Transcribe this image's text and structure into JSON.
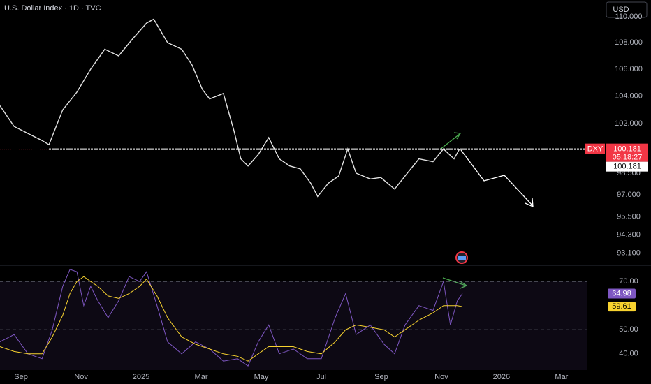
{
  "header": {
    "title": "U.S. Dollar Index · 1D · TVC",
    "currency": "USD"
  },
  "chart_data": [
    {
      "type": "line",
      "name": "DXY",
      "log": true,
      "color": "#e3e3e3",
      "xlim": [
        -0.7,
        18.84
      ],
      "xticks": [
        {
          "value": 0,
          "label": "Sep"
        },
        {
          "value": 2,
          "label": "Nov"
        },
        {
          "value": 4,
          "label": "2025"
        },
        {
          "value": 6,
          "label": "Mar"
        },
        {
          "value": 8,
          "label": "May"
        },
        {
          "value": 10,
          "label": "Jul"
        },
        {
          "value": 12,
          "label": "Sep"
        },
        {
          "value": 14,
          "label": "Nov"
        },
        {
          "value": 16,
          "label": "2026"
        },
        {
          "value": 18,
          "label": "Mar"
        }
      ],
      "ylim": [
        92.3,
        111.3
      ],
      "yticks": [
        {
          "value": 110,
          "label": "110.000"
        },
        {
          "value": 108,
          "label": "108.000"
        },
        {
          "value": 106,
          "label": "106.000"
        },
        {
          "value": 104,
          "label": "104.000"
        },
        {
          "value": 102,
          "label": "102.000"
        },
        {
          "value": 98.5,
          "label": "98.500"
        },
        {
          "value": 97,
          "label": "97.000"
        },
        {
          "value": 95.5,
          "label": "95.500"
        },
        {
          "value": 94.3,
          "label": "94.300"
        },
        {
          "value": 93.1,
          "label": "93.100"
        }
      ],
      "x": [
        -0.7,
        -0.23,
        0.23,
        0.7,
        0.93,
        1.39,
        1.86,
        2.32,
        2.79,
        3.25,
        3.72,
        4.18,
        4.42,
        4.88,
        5.35,
        5.7,
        6.04,
        6.28,
        6.74,
        7.09,
        7.32,
        7.56,
        7.9,
        8.25,
        8.6,
        8.95,
        9.3,
        9.65,
        9.88,
        10.23,
        10.58,
        10.88,
        11.16,
        11.63,
        11.98,
        12.44,
        12.79,
        13.25,
        13.72,
        14.07,
        14.42,
        14.6
      ],
      "values": [
        103.3,
        101.8,
        101.3,
        100.8,
        100.5,
        103,
        104.3,
        106,
        107.5,
        107,
        108.3,
        109.5,
        109.8,
        108,
        107.5,
        106.3,
        104.5,
        103.8,
        104.2,
        101.5,
        99.5,
        99,
        99.8,
        101,
        99.5,
        99,
        98.8,
        97.8,
        96.9,
        97.8,
        98.3,
        100.2,
        98.5,
        98.1,
        98.2,
        97.4,
        98.3,
        99.5,
        99.3,
        100.2,
        99.5,
        100.181
      ],
      "countdown": "05:18:27",
      "hline": 100.181
    },
    {
      "type": "line",
      "xlim": [
        -0.7,
        18.84
      ],
      "ylim": [
        33.3,
        76.7
      ],
      "yticks": [
        {
          "value": 70,
          "label": "70.00"
        },
        {
          "value": 50,
          "label": "50.00"
        },
        {
          "value": 40,
          "label": "40.00"
        }
      ],
      "levels": [
        70,
        50
      ],
      "band": [
        30,
        70
      ],
      "x": [
        -0.7,
        -0.23,
        0.23,
        0.7,
        1.04,
        1.39,
        1.63,
        1.86,
        2.09,
        2.32,
        2.56,
        2.9,
        3.25,
        3.6,
        3.95,
        4.18,
        4.53,
        4.88,
        5.35,
        5.81,
        6.28,
        6.74,
        7.21,
        7.56,
        7.9,
        8.25,
        8.6,
        9.07,
        9.53,
        10,
        10.46,
        10.81,
        11.16,
        11.63,
        12.09,
        12.44,
        12.79,
        13.25,
        13.72,
        14.07,
        14.3,
        14.53,
        14.7
      ],
      "series": [
        {
          "color": "#7e57c2",
          "values": [
            45,
            48,
            40,
            38,
            50,
            68,
            75,
            74,
            60,
            68,
            62,
            55,
            62,
            72,
            70,
            74,
            60,
            45,
            40,
            45,
            42,
            37,
            38,
            35,
            45,
            52,
            40,
            42,
            38,
            38,
            55,
            65,
            48,
            52,
            44,
            40,
            52,
            60,
            58,
            70,
            52,
            62,
            64.98
          ]
        },
        {
          "color": "#f7d22f",
          "values": [
            43,
            41,
            40,
            40,
            47,
            56,
            65,
            70,
            72,
            70,
            68,
            64,
            63,
            65,
            68,
            71,
            64,
            55,
            47,
            44,
            42,
            40,
            39,
            37,
            40,
            43,
            43,
            43,
            41,
            40,
            45,
            50,
            52,
            51,
            50,
            47,
            50,
            54,
            57,
            60,
            60,
            60,
            59.61
          ]
        }
      ]
    }
  ]
}
